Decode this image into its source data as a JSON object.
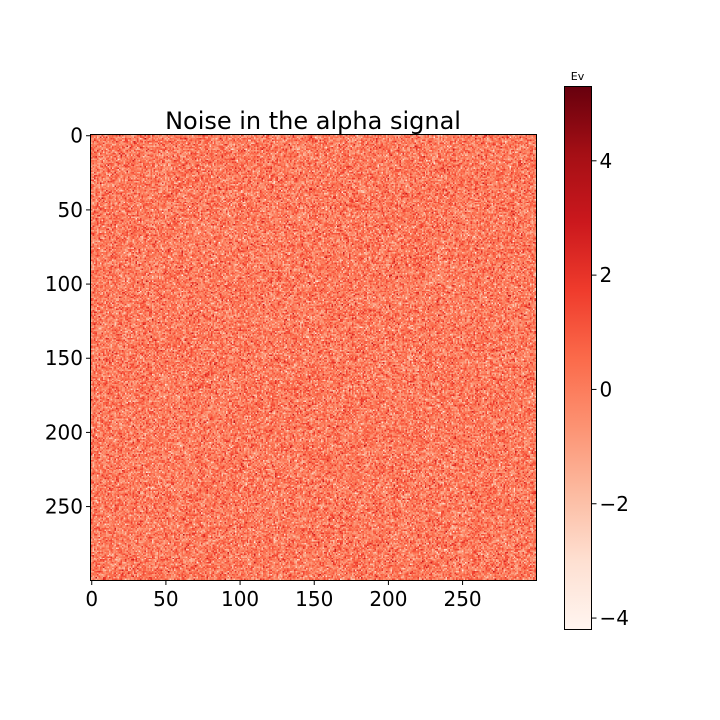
{
  "chart_data": {
    "type": "heatmap",
    "title": "Noise in the alpha signal",
    "xlabel": "",
    "ylabel": "",
    "rows": 300,
    "cols": 300,
    "x_ticks": [
      0,
      50,
      100,
      150,
      200,
      250
    ],
    "y_ticks": [
      0,
      50,
      100,
      150,
      200,
      250
    ],
    "colormap": "Reds",
    "value_distribution": "gaussian random noise, mean about 0, std about 1",
    "color_range": [
      -4.2,
      5.3
    ],
    "colorbar": {
      "label": "Ev",
      "ticks": [
        4,
        2,
        0,
        -2,
        -4
      ],
      "tick_labels": [
        "4",
        "2",
        "0",
        "−2",
        "−4"
      ],
      "range": [
        -4.2,
        5.3
      ]
    },
    "grid": false
  }
}
